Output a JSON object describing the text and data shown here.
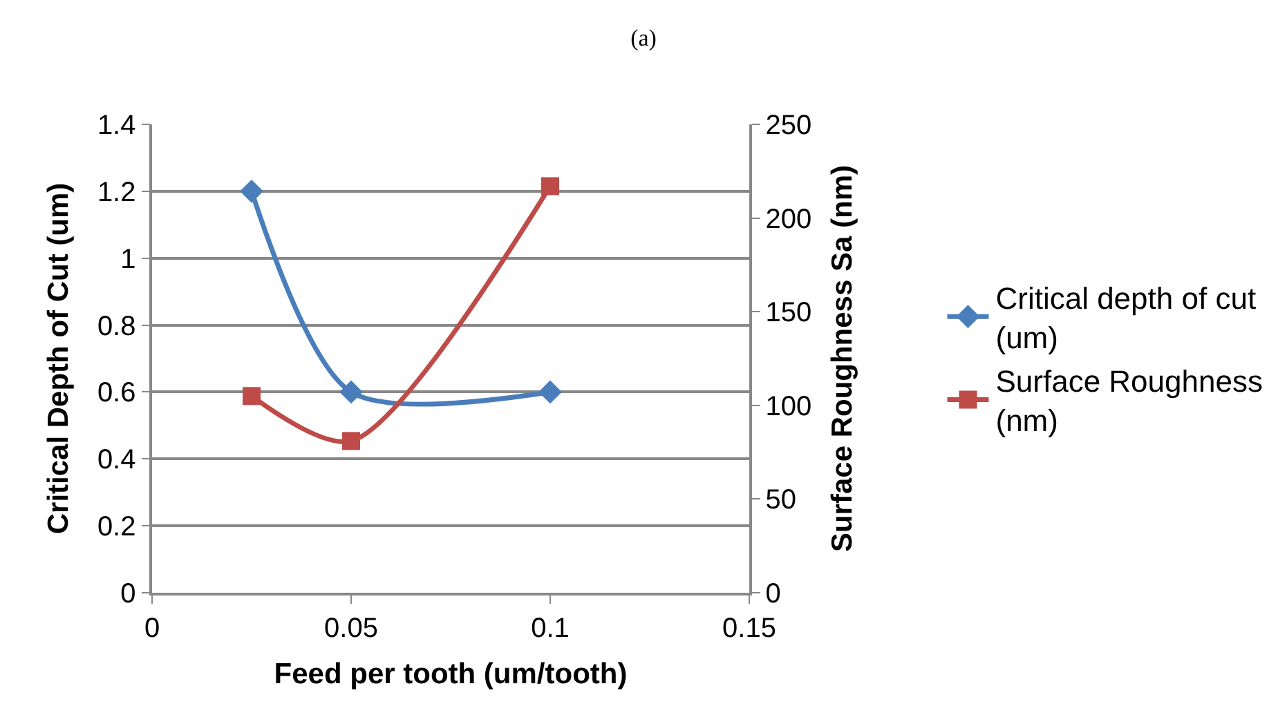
{
  "chart_data": {
    "type": "line",
    "title": "(a)",
    "xlabel": "Feed per tooth (um/tooth)",
    "ylabel": "Critical Depth of Cut (um)",
    "y2label": "Surface Roughness Sa (nm)",
    "x": [
      0.025,
      0.05,
      0.1
    ],
    "series": [
      {
        "name": "Critical depth of cut (um)",
        "color": "#4a7ebb",
        "values": [
          1.2,
          0.6,
          0.6
        ],
        "marker": "diamond"
      },
      {
        "name": "Surface Roughness (nm)",
        "color": "#be4b48",
        "values": [
          105,
          81,
          217
        ],
        "marker": "square",
        "axis": "y2"
      }
    ],
    "xlim": [
      0,
      0.15
    ],
    "xticks": [
      0,
      0.05,
      0.1,
      0.15
    ],
    "ylim": [
      0,
      1.4
    ],
    "yticks": [
      0,
      0.2,
      0.4,
      0.6,
      0.8,
      1,
      1.2,
      1.4
    ],
    "y2lim": [
      0,
      250
    ],
    "y2ticks": [
      0,
      50,
      100,
      150,
      200,
      250
    ],
    "grid": "y",
    "legend": "right"
  }
}
